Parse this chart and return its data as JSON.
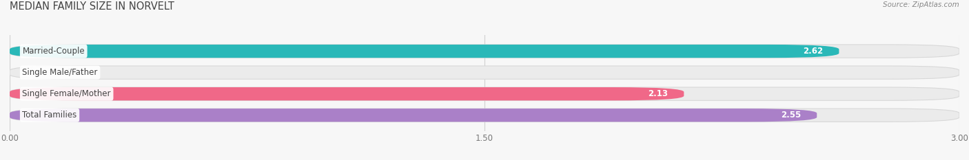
{
  "title": "MEDIAN FAMILY SIZE IN NORVELT",
  "source": "Source: ZipAtlas.com",
  "categories": [
    "Married-Couple",
    "Single Male/Father",
    "Single Female/Mother",
    "Total Families"
  ],
  "values": [
    2.62,
    0.0,
    2.13,
    2.55
  ],
  "bar_colors": [
    "#2ab8b8",
    "#9ab0e0",
    "#f06888",
    "#aa80c8"
  ],
  "bar_track_color": "#ebebeb",
  "bar_track_border_color": "#d8d8d8",
  "xlim_max": 3.0,
  "xticks": [
    0.0,
    1.5,
    3.0
  ],
  "xtick_labels": [
    "0.00",
    "1.50",
    "3.00"
  ],
  "label_fontsize": 8.5,
  "value_fontsize": 8.5,
  "title_fontsize": 10.5,
  "source_fontsize": 7.5,
  "bar_height": 0.62,
  "background_color": "#f7f7f7",
  "grid_color": "#d0d0d0",
  "label_bg_color": "#ffffff",
  "label_text_color": "#444444",
  "value_text_color_inside": "#ffffff",
  "value_text_color_outside": "#666666",
  "title_color": "#444444",
  "source_color": "#888888"
}
